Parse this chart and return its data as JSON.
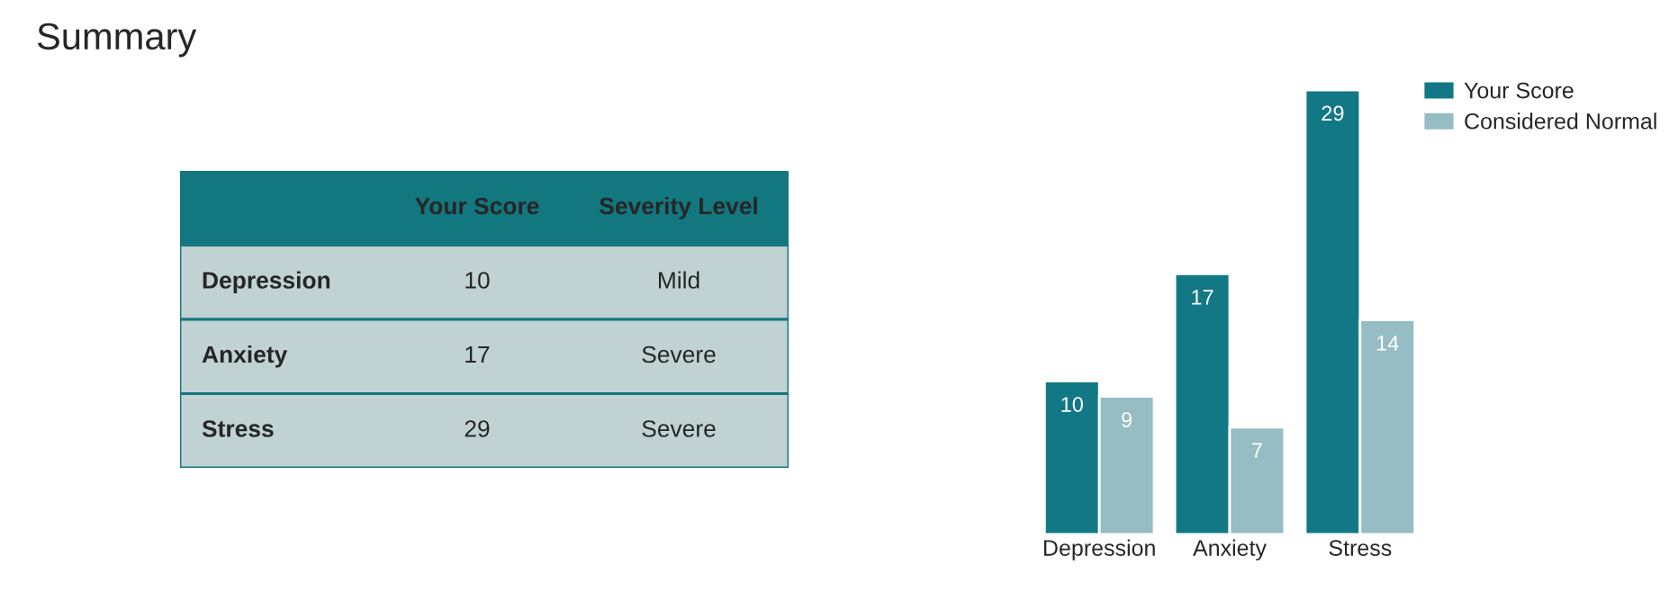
{
  "chart_data": [
    {
      "type": "other",
      "title": "Summary",
      "annotations": [
        "Your Score",
        "Severity Level",
        "Depression",
        "10",
        "Mild",
        "Anxiety",
        "17",
        "Severe",
        "Stress",
        "29",
        "Severe"
      ]
    },
    {
      "type": "bar",
      "categories": [
        "Depression",
        "Anxiety",
        "Stress"
      ],
      "data_labels": true,
      "legend": "top right",
      "series": [
        {
          "name": "Your Score",
          "color": "#137886",
          "values": [
            10,
            17,
            29
          ]
        },
        {
          "name": "Considered Normal",
          "color": "#96bcc4",
          "values": [
            9,
            7,
            14
          ]
        }
      ]
    }
  ]
}
